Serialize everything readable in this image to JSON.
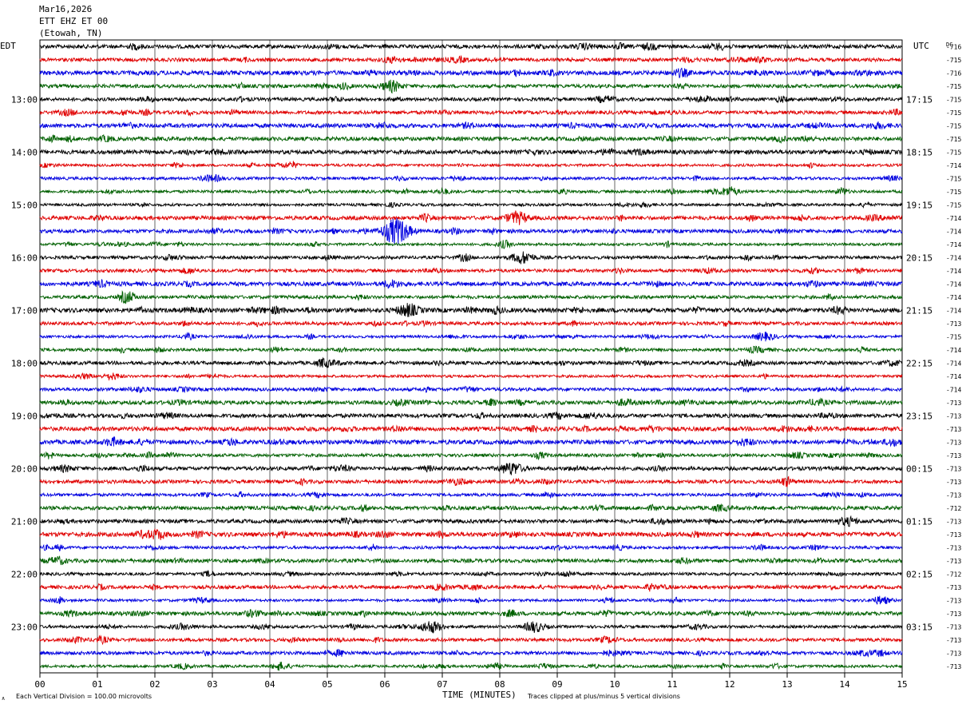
{
  "header": {
    "date": "Mar16,2026",
    "station": "ETT EHZ ET 00",
    "location": "(Etowah, TN)"
  },
  "chart_data": {
    "type": "line",
    "title": "",
    "xlabel": "TIME (MINUTES)",
    "xlim": [
      0,
      15
    ],
    "x_ticks": [
      "00",
      "01",
      "02",
      "03",
      "04",
      "05",
      "06",
      "07",
      "08",
      "09",
      "10",
      "11",
      "12",
      "13",
      "14",
      "15"
    ],
    "left_axis_label": "EDT",
    "right_axis_label": "UTC",
    "dc_label": "DC",
    "left_hour_labels": [
      "13:00",
      "14:00",
      "15:00",
      "16:00",
      "17:00",
      "18:00",
      "19:00",
      "20:00",
      "21:00",
      "22:00",
      "23:00"
    ],
    "right_hour_labels": [
      "17:15",
      "18:15",
      "19:15",
      "20:15",
      "21:15",
      "22:15",
      "23:15",
      "00:15",
      "01:15",
      "02:15",
      "03:15"
    ],
    "trace_colors": [
      "#000000",
      "#e00000",
      "#0000e0",
      "#006000"
    ],
    "dc_offsets": [
      "-716",
      "-715",
      "-716",
      "-715",
      "-715",
      "-715",
      "-715",
      "-715",
      "-715",
      "-714",
      "-715",
      "-715",
      "-715",
      "-714",
      "-714",
      "-714",
      "-714",
      "-714",
      "-714",
      "-714",
      "-714",
      "-713",
      "-715",
      "-714",
      "-714",
      "-714",
      "-714",
      "-713",
      "-713",
      "-713",
      "-713",
      "-713",
      "-713",
      "-713",
      "-713",
      "-712",
      "-713",
      "-713",
      "-713",
      "-713",
      "-712",
      "-713",
      "-713",
      "-713",
      "-713",
      "-713",
      "-713",
      "-713"
    ],
    "notable_events": [
      {
        "trace": 14,
        "minute": 6.2,
        "amplitude": "large"
      },
      {
        "trace": 13,
        "minute": 8.3,
        "amplitude": "medium"
      },
      {
        "trace": 16,
        "minute": 8.4,
        "amplitude": "medium"
      },
      {
        "trace": 20,
        "minute": 6.4,
        "amplitude": "medium"
      },
      {
        "trace": 3,
        "minute": 6.1,
        "amplitude": "small"
      },
      {
        "trace": 22,
        "minute": 12.6,
        "amplitude": "small"
      },
      {
        "trace": 32,
        "minute": 8.2,
        "amplitude": "medium"
      },
      {
        "trace": 44,
        "minute": 6.8,
        "amplitude": "medium"
      },
      {
        "trace": 44,
        "minute": 8.6,
        "amplitude": "small"
      }
    ]
  },
  "footer": {
    "scale_note": "Each Vertical Division =  100.00 microvolts",
    "clip_note": "Traces clipped at plus/minus 5 vertical divisions"
  }
}
